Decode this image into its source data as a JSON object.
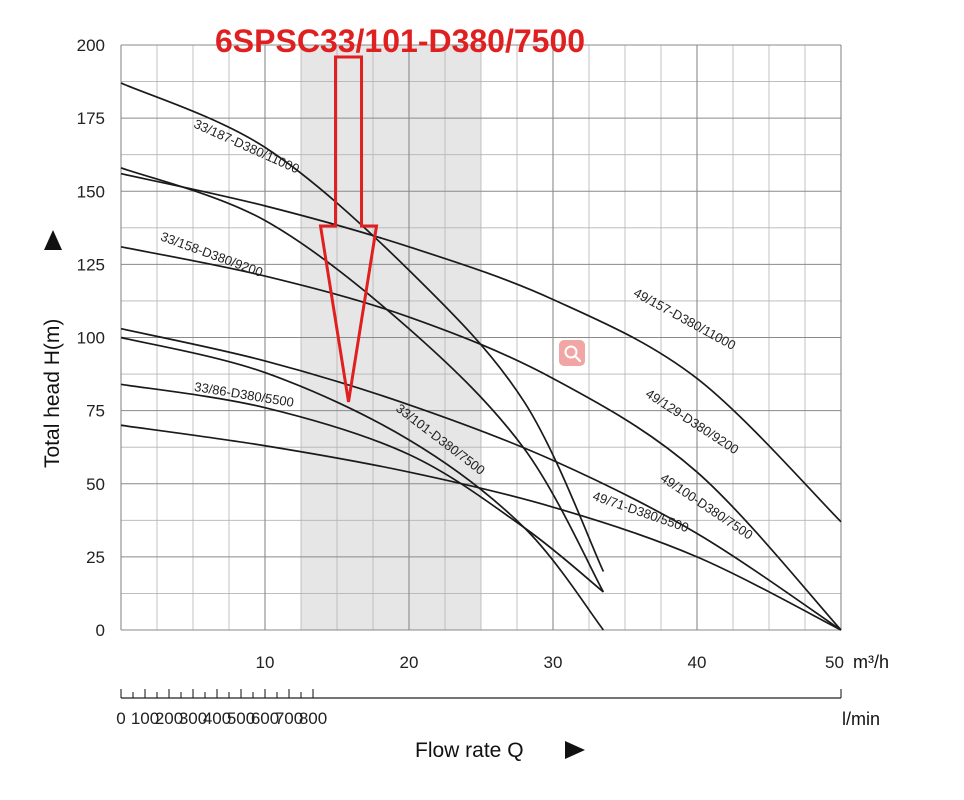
{
  "chart_data": {
    "type": "line",
    "title": "",
    "annotation": "6SPSC33/101-D380/7500",
    "xlabel": "Flow rate Q",
    "ylabel": "Total head H(m)",
    "x_unit": "m³/h",
    "x2_unit": "l/min",
    "xlim": [
      0,
      50
    ],
    "ylim": [
      0,
      200
    ],
    "x_ticks": [
      10,
      20,
      30,
      40,
      50
    ],
    "x_tick_labels": [
      "10",
      "20",
      "30",
      "40",
      "50"
    ],
    "y_ticks": [
      0,
      25,
      50,
      75,
      100,
      125,
      150,
      175,
      200
    ],
    "y_tick_labels": [
      "0",
      "25",
      "50",
      "75",
      "100",
      "125",
      "150",
      "175",
      "200"
    ],
    "x2_ticks": [
      0,
      100,
      200,
      300,
      400,
      500,
      600,
      700,
      800
    ],
    "x2_tick_labels": [
      "0",
      "100",
      "200",
      "300",
      "400",
      "500",
      "600",
      "700",
      "800"
    ],
    "highlight_band": [
      12.5,
      25
    ],
    "arrow_x": 15.8,
    "arrow_tip_y": 78,
    "grid": true,
    "series": [
      {
        "name": "33/187-D380/11000",
        "x": [
          0,
          10,
          20,
          28,
          33.5
        ],
        "y": [
          187,
          165,
          123,
          78,
          20
        ],
        "label_at": [
          8.6,
          164
        ]
      },
      {
        "name": "33/158-D380/9200",
        "x": [
          0,
          10,
          20,
          28,
          33.5
        ],
        "y": [
          158,
          140,
          103,
          62,
          13
        ],
        "label_at": [
          6.2,
          127
        ]
      },
      {
        "name": "33/101-D380/7500",
        "x": [
          0,
          10,
          20,
          28,
          33.5
        ],
        "y": [
          100,
          88,
          65,
          35,
          0
        ],
        "label_at": [
          22,
          64
        ]
      },
      {
        "name": "33/86-D380/5500",
        "x": [
          0,
          10,
          20,
          28,
          33.5
        ],
        "y": [
          84,
          76,
          60,
          35,
          13
        ],
        "label_at": [
          8.5,
          79
        ]
      },
      {
        "name": "49/157-D380/11000",
        "x": [
          0,
          10,
          20,
          30,
          40,
          50
        ],
        "y": [
          156,
          145,
          131,
          113,
          86,
          37
        ],
        "label_at": [
          39,
          105
        ]
      },
      {
        "name": "49/129-D380/9200",
        "x": [
          0,
          10,
          20,
          30,
          40,
          50
        ],
        "y": [
          131,
          121,
          107,
          86,
          54,
          0
        ],
        "label_at": [
          39.5,
          70
        ]
      },
      {
        "name": "49/100-D380/7500",
        "x": [
          0,
          10,
          20,
          30,
          40,
          50
        ],
        "y": [
          103,
          92,
          77,
          58,
          33,
          0
        ],
        "label_at": [
          40.5,
          41
        ]
      },
      {
        "name": "49/71-D380/5500",
        "x": [
          0,
          10,
          20,
          30,
          40,
          50
        ],
        "y": [
          70,
          63,
          54,
          42,
          25,
          0
        ],
        "label_at": [
          36,
          39
        ]
      }
    ]
  }
}
